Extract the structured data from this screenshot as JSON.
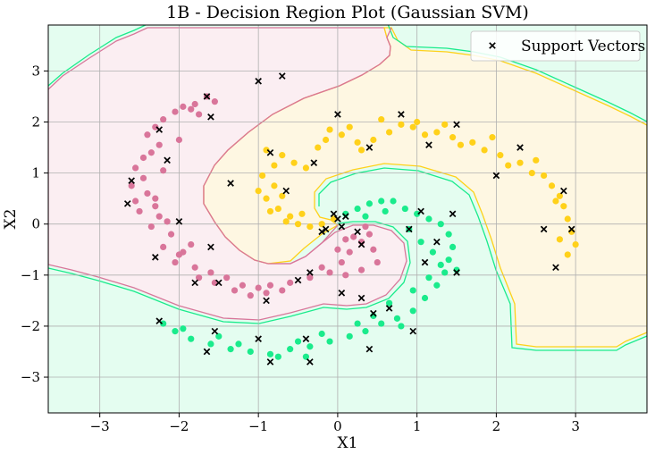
{
  "chart_data": {
    "type": "scatter",
    "title": "1B - Decision Region Plot (Gaussian SVM)",
    "xlabel": "X1",
    "ylabel": "X2",
    "xlim": [
      -3.65,
      3.9
    ],
    "ylim": [
      -3.7,
      3.9
    ],
    "xticks": [
      -3,
      -2,
      -1,
      0,
      1,
      2,
      3
    ],
    "yticks": [
      -3,
      -2,
      -1,
      0,
      1,
      2,
      3
    ],
    "x_tick_labels": [
      "−3",
      "−2",
      "−1",
      "0",
      "1",
      "2",
      "3"
    ],
    "y_tick_labels": [
      "−3",
      "−2",
      "−1",
      "0",
      "1",
      "2",
      "3"
    ],
    "grid": true,
    "legend": {
      "position": "top-right",
      "entries": [
        "Support Vectors"
      ]
    },
    "colors": {
      "pink_class": "#d9759a",
      "yellow_class": "#ffd11a",
      "green_class": "#1aeb8c",
      "pink_region": "#fbeef2",
      "yellow_region": "#fef7e2",
      "green_region": "#e4fdf0",
      "support_vector_marker": "#000000"
    },
    "classes": [
      {
        "color_key": "pink_class",
        "region_key": "pink_region",
        "points": [
          [
            -1.65,
            2.5
          ],
          [
            -1.55,
            2.4
          ],
          [
            -1.8,
            2.35
          ],
          [
            -1.95,
            2.3
          ],
          [
            -1.85,
            2.25
          ],
          [
            -2.05,
            2.2
          ],
          [
            -2.2,
            2.05
          ],
          [
            -2.3,
            1.9
          ],
          [
            -2.4,
            1.75
          ],
          [
            -2.25,
            1.55
          ],
          [
            -2.35,
            1.4
          ],
          [
            -2.45,
            1.3
          ],
          [
            -2.55,
            1.1
          ],
          [
            -2.2,
            1.05
          ],
          [
            -2.45,
            0.9
          ],
          [
            -2.6,
            0.75
          ],
          [
            -2.4,
            0.6
          ],
          [
            -2.3,
            0.35
          ],
          [
            -2.5,
            0.25
          ],
          [
            -2.25,
            0.15
          ],
          [
            -2.15,
            0.05
          ],
          [
            -2.35,
            -0.05
          ],
          [
            -2.1,
            -0.2
          ],
          [
            -2.2,
            -0.45
          ],
          [
            -1.95,
            -0.55
          ],
          [
            -2.05,
            -0.75
          ],
          [
            -1.8,
            -0.85
          ],
          [
            -1.6,
            -0.95
          ],
          [
            -1.4,
            -1.05
          ],
          [
            -1.2,
            -1.2
          ],
          [
            -1.0,
            -1.25
          ],
          [
            -0.85,
            -1.2
          ],
          [
            -0.6,
            -1.15
          ],
          [
            -0.35,
            -1.05
          ],
          [
            -0.2,
            -0.85
          ],
          [
            0.05,
            -0.75
          ],
          [
            0.15,
            -0.55
          ],
          [
            0.3,
            -0.35
          ],
          [
            0.4,
            -0.2
          ],
          [
            0.45,
            -0.5
          ],
          [
            0.5,
            -0.75
          ],
          [
            0.3,
            -0.9
          ],
          [
            0.1,
            -1.0
          ],
          [
            -0.1,
            -0.95
          ],
          [
            0.0,
            -0.5
          ],
          [
            0.2,
            -0.25
          ],
          [
            0.35,
            -0.05
          ],
          [
            -1.3,
            -1.3
          ],
          [
            -1.1,
            -1.4
          ],
          [
            -0.9,
            -1.35
          ],
          [
            -0.7,
            -1.3
          ],
          [
            -1.55,
            -1.15
          ],
          [
            -1.75,
            -1.05
          ],
          [
            -2.0,
            -0.6
          ],
          [
            -1.85,
            -0.4
          ],
          [
            -2.3,
            0.5
          ],
          [
            -2.55,
            0.45
          ],
          [
            -2.0,
            1.65
          ],
          [
            -1.75,
            2.15
          ],
          [
            0.1,
            -0.3
          ]
        ]
      },
      {
        "color_key": "yellow_class",
        "region_key": "yellow_region",
        "points": [
          [
            -0.1,
            1.85
          ],
          [
            0.05,
            1.75
          ],
          [
            -0.15,
            1.65
          ],
          [
            0.25,
            1.6
          ],
          [
            0.45,
            1.65
          ],
          [
            0.65,
            1.8
          ],
          [
            0.8,
            1.95
          ],
          [
            0.95,
            1.9
          ],
          [
            1.1,
            1.75
          ],
          [
            1.25,
            1.8
          ],
          [
            1.45,
            1.7
          ],
          [
            1.55,
            1.55
          ],
          [
            1.7,
            1.6
          ],
          [
            1.85,
            1.45
          ],
          [
            2.05,
            1.35
          ],
          [
            2.15,
            1.15
          ],
          [
            2.3,
            1.2
          ],
          [
            2.45,
            1.0
          ],
          [
            2.6,
            0.95
          ],
          [
            2.7,
            0.75
          ],
          [
            2.8,
            0.55
          ],
          [
            2.85,
            0.35
          ],
          [
            2.9,
            0.1
          ],
          [
            2.95,
            -0.15
          ],
          [
            3.0,
            -0.4
          ],
          [
            2.9,
            -0.6
          ],
          [
            -0.9,
            1.45
          ],
          [
            -0.7,
            1.35
          ],
          [
            -0.55,
            1.2
          ],
          [
            -0.4,
            1.1
          ],
          [
            -0.8,
            1.15
          ],
          [
            -0.95,
            0.95
          ],
          [
            -0.8,
            0.75
          ],
          [
            -0.9,
            0.5
          ],
          [
            -0.75,
            0.3
          ],
          [
            -0.6,
            0.15
          ],
          [
            -0.5,
            0.0
          ],
          [
            -0.35,
            -0.05
          ],
          [
            -0.2,
            0.0
          ],
          [
            -0.05,
            0.1
          ],
          [
            -0.7,
            0.55
          ],
          [
            -0.85,
            0.25
          ],
          [
            -0.65,
            0.05
          ],
          [
            -0.45,
            0.2
          ],
          [
            0.3,
            1.45
          ],
          [
            0.15,
            1.9
          ],
          [
            0.55,
            2.05
          ],
          [
            1.0,
            2.0
          ],
          [
            1.35,
            1.95
          ],
          [
            1.95,
            1.7
          ],
          [
            2.5,
            1.25
          ],
          [
            2.75,
            0.45
          ],
          [
            2.8,
            -0.3
          ],
          [
            -1.0,
            0.65
          ],
          [
            -0.25,
            1.5
          ]
        ]
      },
      {
        "color_key": "green_class",
        "region_key": "green_region",
        "points": [
          [
            0.1,
            0.2
          ],
          [
            0.25,
            0.3
          ],
          [
            0.4,
            0.4
          ],
          [
            0.55,
            0.45
          ],
          [
            0.7,
            0.45
          ],
          [
            0.85,
            0.3
          ],
          [
            1.0,
            0.2
          ],
          [
            1.15,
            0.1
          ],
          [
            1.3,
            0.0
          ],
          [
            1.4,
            -0.2
          ],
          [
            1.45,
            -0.45
          ],
          [
            1.4,
            -0.7
          ],
          [
            1.35,
            -0.95
          ],
          [
            1.25,
            -1.2
          ],
          [
            1.1,
            -1.45
          ],
          [
            0.95,
            -1.7
          ],
          [
            0.75,
            -1.85
          ],
          [
            0.55,
            -1.95
          ],
          [
            0.35,
            -2.1
          ],
          [
            0.15,
            -2.2
          ],
          [
            -0.1,
            -2.3
          ],
          [
            -0.35,
            -2.4
          ],
          [
            -0.6,
            -2.45
          ],
          [
            -0.85,
            -2.55
          ],
          [
            -1.1,
            -2.5
          ],
          [
            -1.35,
            -2.45
          ],
          [
            -1.6,
            -2.35
          ],
          [
            -1.85,
            -2.25
          ],
          [
            -2.05,
            -2.1
          ],
          [
            -2.2,
            -1.95
          ],
          [
            0.9,
            -0.1
          ],
          [
            1.05,
            -0.35
          ],
          [
            1.2,
            -0.55
          ],
          [
            1.3,
            -0.8
          ],
          [
            1.15,
            -1.05
          ],
          [
            0.95,
            -1.3
          ],
          [
            0.65,
            -1.55
          ],
          [
            0.45,
            -1.8
          ],
          [
            0.25,
            -1.95
          ],
          [
            -0.2,
            -2.15
          ],
          [
            -0.5,
            -2.3
          ],
          [
            -0.75,
            -2.6
          ],
          [
            -1.25,
            -2.35
          ],
          [
            -1.5,
            -2.2
          ],
          [
            0.6,
            0.25
          ],
          [
            0.35,
            0.15
          ],
          [
            1.5,
            -0.9
          ],
          [
            0.8,
            -2.0
          ],
          [
            -1.95,
            -2.05
          ],
          [
            -0.4,
            -2.6
          ]
        ]
      }
    ],
    "support_vectors": [
      [
        -1.65,
        2.5
      ],
      [
        -1.6,
        2.1
      ],
      [
        -1.0,
        2.8
      ],
      [
        -0.7,
        2.9
      ],
      [
        -2.25,
        1.85
      ],
      [
        -2.15,
        1.25
      ],
      [
        -2.6,
        0.85
      ],
      [
        -2.65,
        0.4
      ],
      [
        -2.3,
        -0.65
      ],
      [
        -2.0,
        0.05
      ],
      [
        -1.6,
        -0.45
      ],
      [
        -1.8,
        -1.15
      ],
      [
        -1.5,
        -1.15
      ],
      [
        -1.35,
        0.8
      ],
      [
        -0.85,
        1.4
      ],
      [
        -0.65,
        0.65
      ],
      [
        -0.3,
        1.2
      ],
      [
        0.0,
        2.15
      ],
      [
        0.4,
        1.5
      ],
      [
        0.8,
        2.15
      ],
      [
        1.15,
        1.55
      ],
      [
        1.5,
        1.95
      ],
      [
        2.0,
        0.95
      ],
      [
        2.3,
        1.5
      ],
      [
        2.85,
        0.65
      ],
      [
        2.6,
        -0.1
      ],
      [
        2.95,
        -0.1
      ],
      [
        2.75,
        -0.85
      ],
      [
        -0.9,
        -1.5
      ],
      [
        -0.5,
        -1.1
      ],
      [
        -0.2,
        -0.15
      ],
      [
        -0.15,
        -0.1
      ],
      [
        0.0,
        0.1
      ],
      [
        0.1,
        0.15
      ],
      [
        0.25,
        -0.15
      ],
      [
        0.3,
        -0.4
      ],
      [
        0.05,
        -1.35
      ],
      [
        0.3,
        -1.45
      ],
      [
        -0.35,
        -0.95
      ],
      [
        0.9,
        -0.1
      ],
      [
        1.05,
        0.25
      ],
      [
        1.45,
        0.2
      ],
      [
        1.25,
        -0.35
      ],
      [
        1.1,
        -0.75
      ],
      [
        1.5,
        -0.95
      ],
      [
        0.65,
        -1.65
      ],
      [
        0.45,
        -1.75
      ],
      [
        0.95,
        -2.1
      ],
      [
        0.4,
        -2.45
      ],
      [
        -1.0,
        -2.25
      ],
      [
        -1.55,
        -2.1
      ],
      [
        -1.65,
        -2.5
      ],
      [
        -2.25,
        -1.9
      ],
      [
        -0.85,
        -2.7
      ],
      [
        -0.35,
        -2.7
      ],
      [
        -0.4,
        -2.25
      ],
      [
        0.05,
        -0.05
      ],
      [
        -0.05,
        0.2
      ]
    ]
  }
}
